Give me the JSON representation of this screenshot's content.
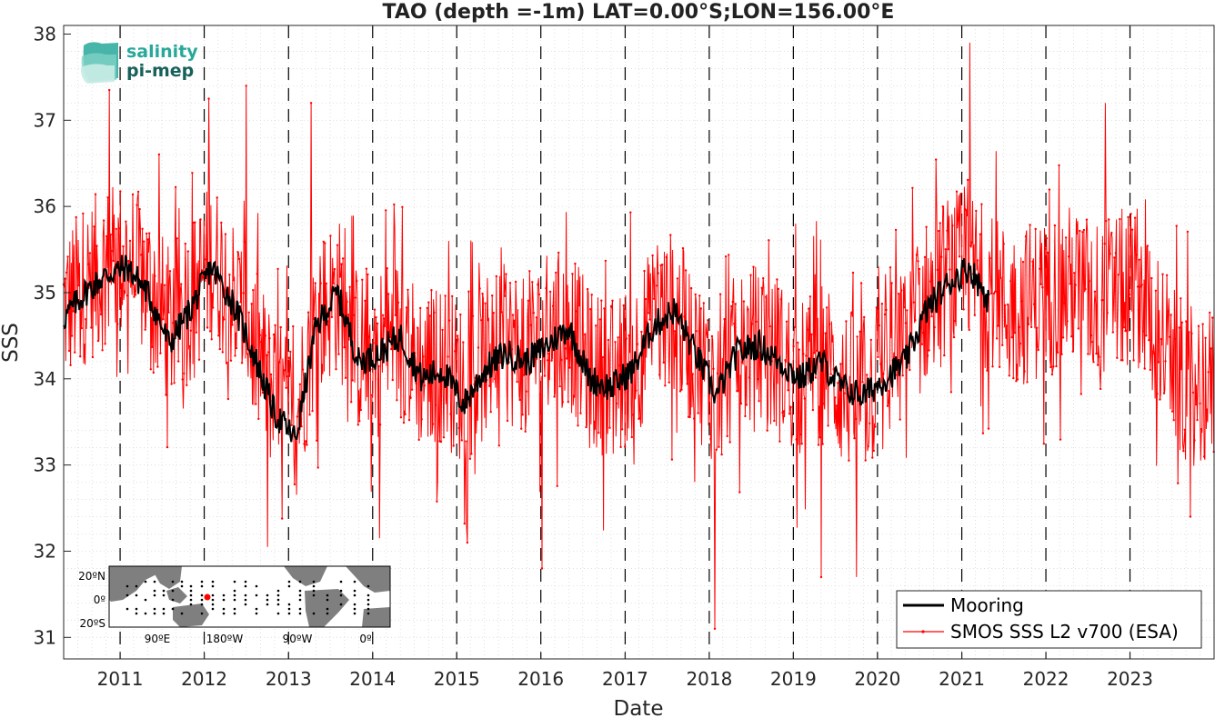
{
  "chart_data": {
    "type": "line",
    "title": "TAO (depth =-1m) LAT=0.00°S;LON=156.00°E",
    "xlabel": "Date",
    "ylabel": "SSS",
    "xlim": [
      "2010-05-01",
      "2024-01-01"
    ],
    "ylim": [
      30.75,
      38.1
    ],
    "x_ticks": [
      "2011",
      "2012",
      "2013",
      "2014",
      "2015",
      "2016",
      "2017",
      "2018",
      "2019",
      "2020",
      "2021",
      "2022",
      "2023"
    ],
    "y_ticks": [
      31,
      32,
      33,
      34,
      35,
      36,
      37,
      38
    ],
    "grid": true,
    "year_boundaries_dashed": true,
    "legend_position": "bottom-right",
    "series": [
      {
        "name": "Mooring",
        "color": "#000000",
        "x": [
          "2010-05-01",
          "2010-08-01",
          "2010-11-01",
          "2011-02-01",
          "2011-05-01",
          "2011-08-01",
          "2011-11-01",
          "2012-02-01",
          "2012-05-01",
          "2012-08-01",
          "2012-11-01",
          "2013-02-01",
          "2013-05-01",
          "2013-08-01",
          "2013-11-01",
          "2014-02-01",
          "2014-05-01",
          "2014-08-01",
          "2014-11-01",
          "2015-02-01",
          "2015-05-01",
          "2015-08-01",
          "2015-11-01",
          "2016-02-01",
          "2016-05-01",
          "2016-08-01",
          "2016-11-01",
          "2017-02-01",
          "2017-05-01",
          "2017-08-01",
          "2017-11-01",
          "2018-02-01",
          "2018-05-01",
          "2018-08-01",
          "2018-11-01",
          "2019-02-01",
          "2019-05-01",
          "2019-08-01",
          "2019-11-01",
          "2020-02-01",
          "2020-05-01",
          "2020-08-01",
          "2020-11-01",
          "2021-02-01",
          "2021-05-01"
        ],
        "y": [
          34.7,
          35.0,
          35.2,
          35.3,
          35.0,
          34.4,
          34.8,
          35.3,
          34.9,
          34.3,
          33.6,
          33.3,
          34.6,
          35.0,
          34.2,
          34.3,
          34.5,
          34.0,
          34.1,
          33.7,
          34.1,
          34.3,
          34.2,
          34.4,
          34.6,
          34.0,
          33.9,
          34.1,
          34.6,
          34.8,
          34.3,
          33.8,
          34.3,
          34.4,
          34.2,
          34.0,
          34.2,
          33.9,
          33.8,
          34.0,
          34.2,
          34.8,
          35.1,
          35.3,
          34.9
        ]
      },
      {
        "name": "SMOS SSS L2 v700 (ESA)",
        "color": "#ff0000",
        "x": [
          "2010-05-01",
          "2010-08-01",
          "2010-11-01",
          "2011-02-01",
          "2011-05-01",
          "2011-08-01",
          "2011-11-01",
          "2012-02-01",
          "2012-05-01",
          "2012-08-01",
          "2012-11-01",
          "2013-02-01",
          "2013-05-01",
          "2013-08-01",
          "2013-11-01",
          "2014-02-01",
          "2014-05-01",
          "2014-08-01",
          "2014-11-01",
          "2015-02-01",
          "2015-05-01",
          "2015-08-01",
          "2015-11-01",
          "2016-02-01",
          "2016-05-01",
          "2016-08-01",
          "2016-11-01",
          "2017-02-01",
          "2017-05-01",
          "2017-08-01",
          "2017-11-01",
          "2018-02-01",
          "2018-05-01",
          "2018-08-01",
          "2018-11-01",
          "2019-02-01",
          "2019-05-01",
          "2019-08-01",
          "2019-11-01",
          "2020-02-01",
          "2020-05-01",
          "2020-08-01",
          "2020-11-01",
          "2021-02-01",
          "2021-05-01",
          "2021-08-01",
          "2021-11-01",
          "2022-02-01",
          "2022-05-01",
          "2022-08-01",
          "2022-11-01",
          "2023-02-01",
          "2023-05-01",
          "2023-08-01",
          "2023-11-01"
        ],
        "y": [
          34.8,
          35.1,
          35.3,
          35.4,
          35.1,
          34.6,
          34.9,
          35.4,
          35.0,
          34.4,
          33.8,
          33.5,
          34.7,
          35.0,
          34.3,
          34.4,
          34.5,
          34.1,
          34.2,
          33.9,
          34.2,
          34.4,
          34.3,
          34.5,
          34.6,
          34.1,
          34.0,
          34.2,
          34.6,
          34.8,
          34.3,
          33.9,
          34.3,
          34.4,
          34.2,
          34.0,
          34.2,
          33.9,
          33.8,
          34.1,
          34.4,
          34.9,
          35.2,
          35.3,
          35.0,
          34.8,
          34.9,
          35.0,
          35.1,
          34.9,
          35.0,
          35.1,
          34.6,
          34.0,
          33.9
        ],
        "sample_extremes": [
          {
            "x": "2010-11-15",
            "y": 37.35
          },
          {
            "x": "2012-01-20",
            "y": 37.25
          },
          {
            "x": "2012-07-01",
            "y": 37.4
          },
          {
            "x": "2012-10-01",
            "y": 32.05
          },
          {
            "x": "2013-04-10",
            "y": 37.2
          },
          {
            "x": "2014-02-01",
            "y": 32.15
          },
          {
            "x": "2015-02-15",
            "y": 32.1
          },
          {
            "x": "2016-01-05",
            "y": 31.8
          },
          {
            "x": "2018-01-25",
            "y": 31.1
          },
          {
            "x": "2019-05-01",
            "y": 31.7
          },
          {
            "x": "2019-10-01",
            "y": 31.7
          },
          {
            "x": "2021-02-05",
            "y": 37.9
          },
          {
            "x": "2022-09-15",
            "y": 37.2
          },
          {
            "x": "2023-09-20",
            "y": 32.4
          }
        ]
      }
    ]
  },
  "logo": {
    "line1": "salinity",
    "line2": "pi-mep"
  },
  "inset_map": {
    "lat_labels": [
      "20ºN",
      "0º",
      "20ºS"
    ],
    "lon_labels": [
      "90ºE",
      "180ºW",
      "90ºW",
      "0º"
    ],
    "land_color": "#7f7f7f",
    "ocean_color": "#ffffff",
    "marker_color": "#ff0000"
  }
}
